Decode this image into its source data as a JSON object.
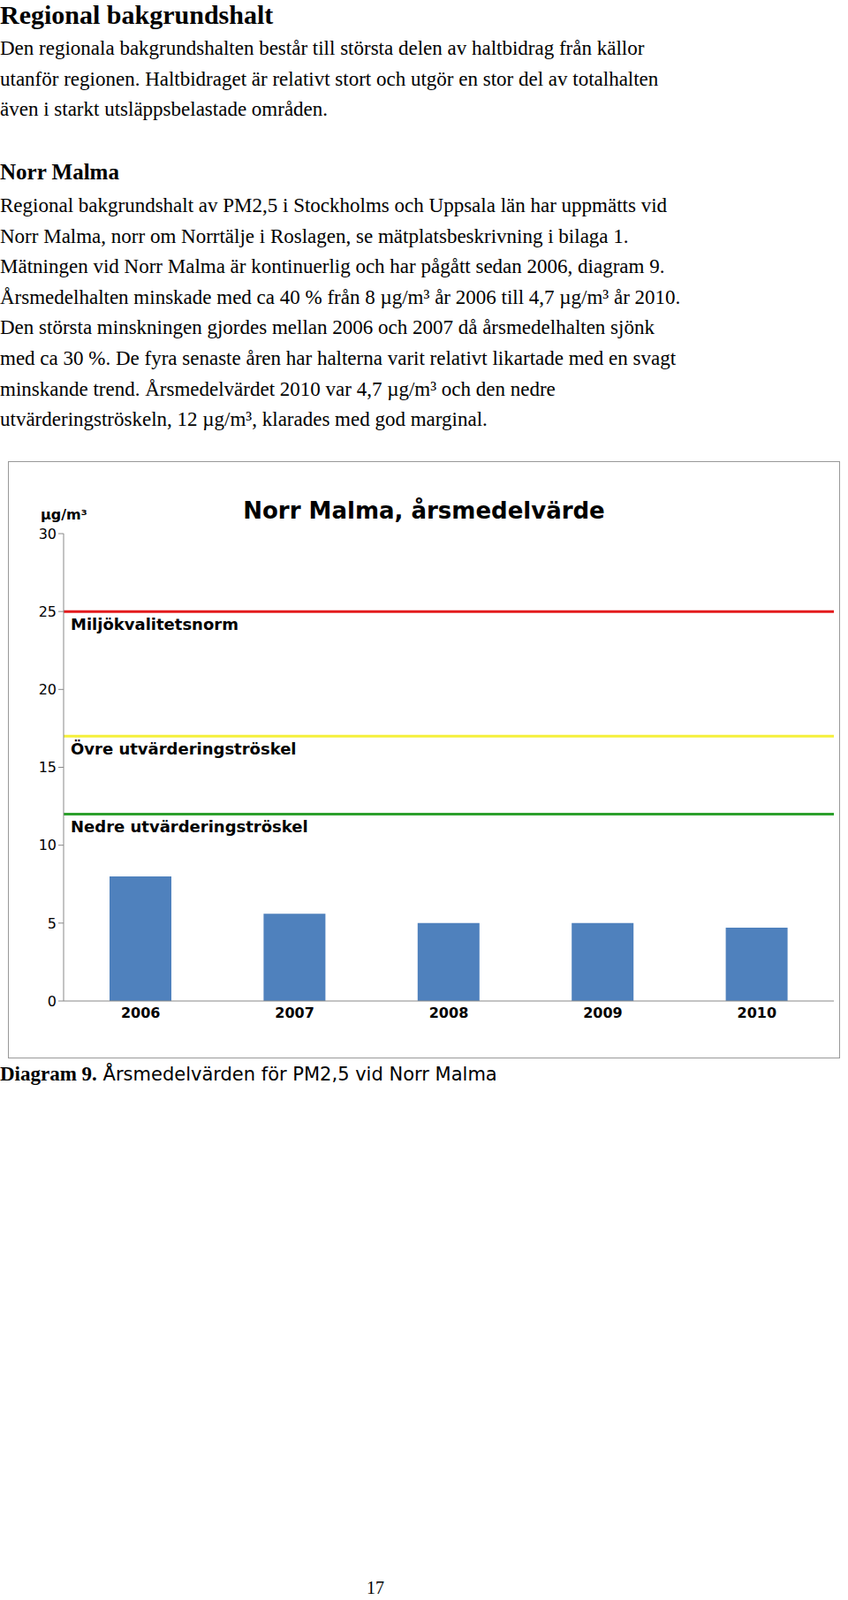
{
  "heading": "Regional bakgrundshalt",
  "intro_lines": [
    "Den regionala bakgrundshalten består till största delen av haltbidrag från källor",
    "utanför regionen. Haltbidraget är relativt stort och utgör en stor del av totalhalten",
    "även i starkt utsläppsbelastade områden."
  ],
  "section_title": "Norr Malma",
  "section_lines": [
    "Regional bakgrundshalt av PM2,5 i Stockholms och Uppsala län har uppmätts vid",
    "Norr Malma, norr om Norrtälje i Roslagen, se mätplatsbeskrivning i bilaga 1.",
    "Mätningen vid Norr Malma är kontinuerlig och har pågått sedan 2006, diagram 9.",
    "Årsmedelhalten minskade med ca 40 % från 8 µg/m³ år 2006 till 4,7 µg/m³ år 2010.",
    "Den största minskningen gjordes mellan 2006 och 2007 då årsmedelhalten sjönk",
    "med ca 30 %. De fyra senaste åren har halterna varit relativt likartade med en svagt",
    "minskande trend. Årsmedelvärdet 2010 var 4,7 µg/m³ och den nedre",
    "utvärderingströskeln, 12 µg/m³, klarades med god marginal."
  ],
  "chart_data": {
    "type": "bar",
    "title": "Norr Malma, årsmedelvärde",
    "y_label": "µg/m³",
    "categories": [
      "2006",
      "2007",
      "2008",
      "2009",
      "2010"
    ],
    "values": [
      8.0,
      5.6,
      5.0,
      5.0,
      4.7
    ],
    "color": "#4f81bd",
    "ylim": [
      0,
      30
    ],
    "yticks": [
      0,
      5,
      10,
      15,
      20,
      25,
      30
    ],
    "grid": false,
    "reference_lines": [
      {
        "label": "Miljökvalitetsnorm",
        "value": 25,
        "color": "#e31a1c"
      },
      {
        "label": "Övre utvärderingströskel",
        "value": 17,
        "color": "#f5f03a"
      },
      {
        "label": "Nedre utvärderingströskel",
        "value": 12,
        "color": "#2ca02c"
      }
    ]
  },
  "caption": {
    "label": "Diagram 9.",
    "text": "Årsmedelvärden för PM2,5 vid Norr Malma"
  },
  "page_number": "17"
}
